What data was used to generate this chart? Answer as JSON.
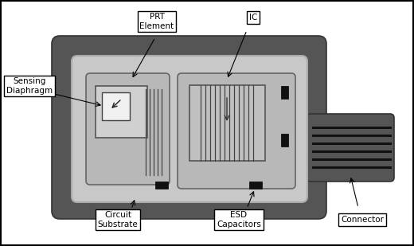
{
  "fig_w": 5.2,
  "fig_h": 3.09,
  "dpi": 100,
  "bg": "#ffffff",
  "outer_dark": "#555555",
  "substrate_light": "#c8c8c8",
  "board_gray": "#b0b0b0",
  "prt_rounded_fill": "#b8b8b8",
  "ic_rounded_fill": "#b8b8b8",
  "white": "#ffffff",
  "near_white": "#e8e8e8",
  "cap_black": "#111111",
  "wire_color": "#222222",
  "label_edge": "#000000",
  "labels": {
    "prt": "PRT\nElement",
    "ic": "IC",
    "sensing": "Sensing\nDiaphragm",
    "circuit": "Circuit\nSubstrate",
    "esd": "ESD\nCapacitors",
    "connector": "Connector"
  }
}
